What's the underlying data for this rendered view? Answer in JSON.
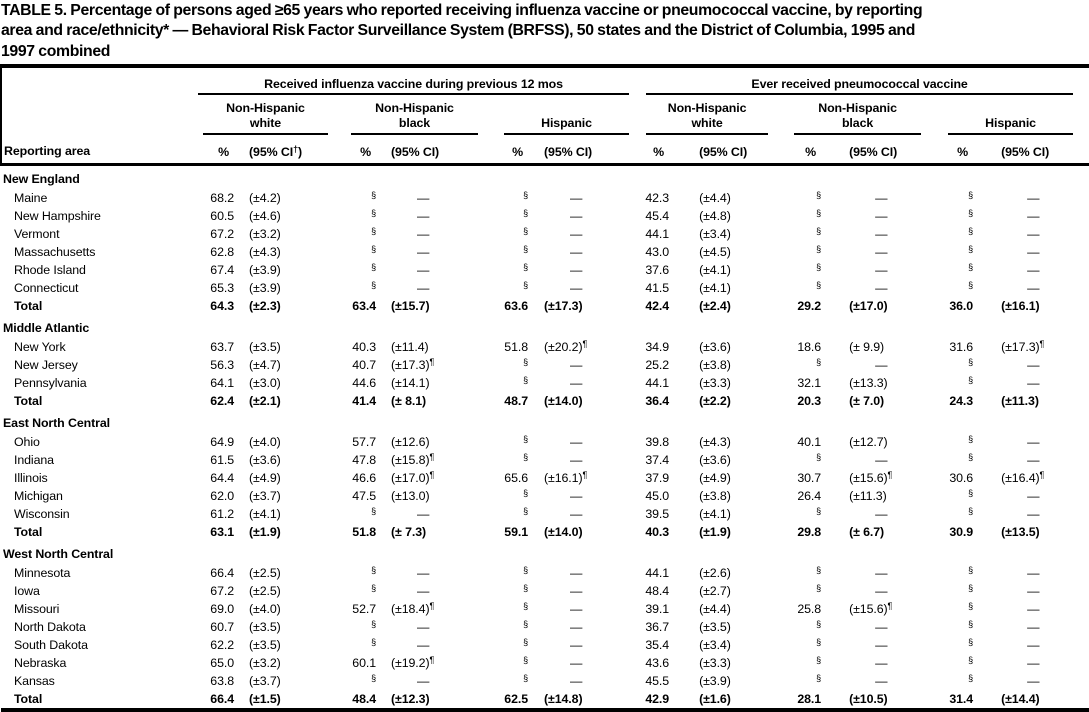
{
  "title_lines": [
    "TABLE 5. Percentage of persons aged ≥65 years who reported receiving influenza vaccine or pneumococcal vaccine, by reporting",
    "area and race/ethnicity* — Behavioral Risk Factor Surveillance System (BRFSS), 50 states and the District of Columbia, 1995 and",
    "1997 combined"
  ],
  "header": {
    "reporting_area": "Reporting area",
    "group1": "Received influenza vaccine during previous 12 mos",
    "group2": "Ever received pneumococcal vaccine",
    "subgroups": [
      {
        "top": "Non-Hispanic",
        "bottom": "white"
      },
      {
        "top": "Non-Hispanic",
        "bottom": "black"
      },
      {
        "top": "",
        "bottom": "Hispanic"
      }
    ],
    "pct": "%",
    "ci": "(95% CI)",
    "ci_first_base": "(95% CI",
    "dagger": "†",
    "paren_close": ")"
  },
  "footnote_marks": {
    "asterisk": "*",
    "dagger": "†",
    "section": "§",
    "pilcrow": "¶",
    "missing_dash": "—"
  },
  "columns": [
    "flu_white_pct",
    "flu_white_ci",
    "flu_black_pct",
    "flu_black_ci",
    "flu_hisp_pct",
    "flu_hisp_ci",
    "pn_white_pct",
    "pn_white_ci",
    "pn_black_pct",
    "pn_black_ci",
    "pn_hisp_pct",
    "pn_hisp_ci"
  ],
  "regions": [
    {
      "name": "New England",
      "rows": [
        {
          "area": "Maine",
          "total": false,
          "cells": [
            "68.2",
            "(±4.2)",
            "§",
            "—",
            "§",
            "—",
            "42.3",
            "(±4.4)",
            "§",
            "—",
            "§",
            "—"
          ]
        },
        {
          "area": "New Hampshire",
          "total": false,
          "cells": [
            "60.5",
            "(±4.6)",
            "§",
            "—",
            "§",
            "—",
            "45.4",
            "(±4.8)",
            "§",
            "—",
            "§",
            "—"
          ]
        },
        {
          "area": "Vermont",
          "total": false,
          "cells": [
            "67.2",
            "(±3.2)",
            "§",
            "—",
            "§",
            "—",
            "44.1",
            "(±3.4)",
            "§",
            "—",
            "§",
            "—"
          ]
        },
        {
          "area": "Massachusetts",
          "total": false,
          "cells": [
            "62.8",
            "(±4.3)",
            "§",
            "—",
            "§",
            "—",
            "43.0",
            "(±4.5)",
            "§",
            "—",
            "§",
            "—"
          ]
        },
        {
          "area": "Rhode Island",
          "total": false,
          "cells": [
            "67.4",
            "(±3.9)",
            "§",
            "—",
            "§",
            "—",
            "37.6",
            "(±4.1)",
            "§",
            "—",
            "§",
            "—"
          ]
        },
        {
          "area": "Connecticut",
          "total": false,
          "cells": [
            "65.3",
            "(±3.9)",
            "§",
            "—",
            "§",
            "—",
            "41.5",
            "(±4.1)",
            "§",
            "—",
            "§",
            "—"
          ]
        },
        {
          "area": "Total",
          "total": true,
          "cells": [
            "64.3",
            "(±2.3)",
            "63.4",
            "(±15.7)",
            "63.6",
            "(±17.3)",
            "42.4",
            "(±2.4)",
            "29.2",
            "(±17.0)",
            "36.0",
            "(±16.1)"
          ]
        }
      ]
    },
    {
      "name": "Middle Atlantic",
      "rows": [
        {
          "area": "New York",
          "total": false,
          "cells": [
            "63.7",
            "(±3.5)",
            "40.3",
            "(±11.4)",
            "51.8",
            "(±20.2)¶",
            "34.9",
            "(±3.6)",
            "18.6",
            "(± 9.9)",
            "31.6",
            "(±17.3)¶"
          ]
        },
        {
          "area": "New Jersey",
          "total": false,
          "cells": [
            "56.3",
            "(±4.7)",
            "40.7",
            "(±17.3)¶",
            "§",
            "—",
            "25.2",
            "(±3.8)",
            "§",
            "—",
            "§",
            "—"
          ]
        },
        {
          "area": "Pennsylvania",
          "total": false,
          "cells": [
            "64.1",
            "(±3.0)",
            "44.6",
            "(±14.1)",
            "§",
            "—",
            "44.1",
            "(±3.3)",
            "32.1",
            "(±13.3)",
            "§",
            "—"
          ]
        },
        {
          "area": "Total",
          "total": true,
          "cells": [
            "62.4",
            "(±2.1)",
            "41.4",
            "(± 8.1)",
            "48.7",
            "(±14.0)",
            "36.4",
            "(±2.2)",
            "20.3",
            "(± 7.0)",
            "24.3",
            "(±11.3)"
          ]
        }
      ]
    },
    {
      "name": "East North Central",
      "rows": [
        {
          "area": "Ohio",
          "total": false,
          "cells": [
            "64.9",
            "(±4.0)",
            "57.7",
            "(±12.6)",
            "§",
            "—",
            "39.8",
            "(±4.3)",
            "40.1",
            "(±12.7)",
            "§",
            "—"
          ]
        },
        {
          "area": "Indiana",
          "total": false,
          "cells": [
            "61.5",
            "(±3.6)",
            "47.8",
            "(±15.8)¶",
            "§",
            "—",
            "37.4",
            "(±3.6)",
            "§",
            "—",
            "§",
            "—"
          ]
        },
        {
          "area": "Illinois",
          "total": false,
          "cells": [
            "64.4",
            "(±4.9)",
            "46.6",
            "(±17.0)¶",
            "65.6",
            "(±16.1)¶",
            "37.9",
            "(±4.9)",
            "30.7",
            "(±15.6)¶",
            "30.6",
            "(±16.4)¶"
          ]
        },
        {
          "area": "Michigan",
          "total": false,
          "cells": [
            "62.0",
            "(±3.7)",
            "47.5",
            "(±13.0)",
            "§",
            "—",
            "45.0",
            "(±3.8)",
            "26.4",
            "(±11.3)",
            "§",
            "—"
          ]
        },
        {
          "area": "Wisconsin",
          "total": false,
          "cells": [
            "61.2",
            "(±4.1)",
            "§",
            "—",
            "§",
            "—",
            "39.5",
            "(±4.1)",
            "§",
            "—",
            "§",
            "—"
          ]
        },
        {
          "area": "Total",
          "total": true,
          "cells": [
            "63.1",
            "(±1.9)",
            "51.8",
            "(± 7.3)",
            "59.1",
            "(±14.0)",
            "40.3",
            "(±1.9)",
            "29.8",
            "(± 6.7)",
            "30.9",
            "(±13.5)"
          ]
        }
      ]
    },
    {
      "name": "West North Central",
      "rows": [
        {
          "area": "Minnesota",
          "total": false,
          "cells": [
            "66.4",
            "(±2.5)",
            "§",
            "—",
            "§",
            "—",
            "44.1",
            "(±2.6)",
            "§",
            "—",
            "§",
            "—"
          ]
        },
        {
          "area": "Iowa",
          "total": false,
          "cells": [
            "67.2",
            "(±2.5)",
            "§",
            "—",
            "§",
            "—",
            "48.4",
            "(±2.7)",
            "§",
            "—",
            "§",
            "—"
          ]
        },
        {
          "area": "Missouri",
          "total": false,
          "cells": [
            "69.0",
            "(±4.0)",
            "52.7",
            "(±18.4)¶",
            "§",
            "—",
            "39.1",
            "(±4.4)",
            "25.8",
            "(±15.6)¶",
            "§",
            "—"
          ]
        },
        {
          "area": "North Dakota",
          "total": false,
          "cells": [
            "60.7",
            "(±3.5)",
            "§",
            "—",
            "§",
            "—",
            "36.7",
            "(±3.5)",
            "§",
            "—",
            "§",
            "—"
          ]
        },
        {
          "area": "South Dakota",
          "total": false,
          "cells": [
            "62.2",
            "(±3.5)",
            "§",
            "—",
            "§",
            "—",
            "35.4",
            "(±3.4)",
            "§",
            "—",
            "§",
            "—"
          ]
        },
        {
          "area": "Nebraska",
          "total": false,
          "cells": [
            "65.0",
            "(±3.2)",
            "60.1",
            "(±19.2)¶",
            "§",
            "—",
            "43.6",
            "(±3.3)",
            "§",
            "—",
            "§",
            "—"
          ]
        },
        {
          "area": "Kansas",
          "total": false,
          "cells": [
            "63.8",
            "(±3.7)",
            "§",
            "—",
            "§",
            "—",
            "45.5",
            "(±3.9)",
            "§",
            "—",
            "§",
            "—"
          ]
        },
        {
          "area": "Total",
          "total": true,
          "cells": [
            "66.4",
            "(±1.5)",
            "48.4",
            "(±12.3)",
            "62.5",
            "(±14.8)",
            "42.9",
            "(±1.6)",
            "28.1",
            "(±10.5)",
            "31.4",
            "(±14.4)"
          ]
        }
      ]
    }
  ]
}
